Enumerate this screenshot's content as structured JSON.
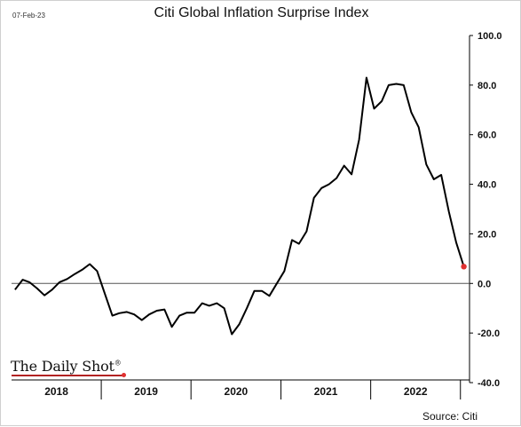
{
  "header": {
    "date": "07-Feb-23",
    "title": "Citi Global Inflation Surprise Index"
  },
  "footer": {
    "source": "Source: Citi",
    "logo_text": "The Daily Shot",
    "logo_mark": "®"
  },
  "colors": {
    "line": "#000000",
    "last_point": "#e03030",
    "zero_line": "#555555",
    "axis": "#000000"
  },
  "chart_data": {
    "type": "line",
    "title": "Citi Global Inflation Surprise Index",
    "xlabel": "",
    "ylabel": "",
    "ylim": [
      -40,
      100
    ],
    "y_ticks": [
      -40,
      -20,
      0,
      20,
      40,
      60,
      80,
      100
    ],
    "y_tick_labels": [
      "-40.0",
      "-20.0",
      "0.0",
      "20.0",
      "40.0",
      "60.0",
      "80.0",
      "100.0"
    ],
    "x_range": [
      "2018-01-01",
      "2023-02-07"
    ],
    "year_labels": [
      "2018",
      "2019",
      "2020",
      "2021",
      "2022"
    ],
    "grid": false,
    "legend": "none",
    "series": [
      {
        "x": [
          "2018-01-15",
          "2018-02-15",
          "2018-03-15",
          "2018-04-15",
          "2018-05-15",
          "2018-06-15",
          "2018-07-15",
          "2018-08-15",
          "2018-09-15",
          "2018-10-15",
          "2018-11-15",
          "2018-12-15",
          "2019-01-15",
          "2019-02-15",
          "2019-03-15",
          "2019-04-15",
          "2019-05-15",
          "2019-06-15",
          "2019-07-15",
          "2019-08-15",
          "2019-09-15",
          "2019-10-15",
          "2019-11-15",
          "2019-12-15",
          "2020-01-15",
          "2020-02-15",
          "2020-03-15",
          "2020-04-15",
          "2020-05-15",
          "2020-06-15",
          "2020-07-15",
          "2020-08-15",
          "2020-09-15",
          "2020-10-15",
          "2020-11-15",
          "2020-12-15",
          "2021-01-15",
          "2021-02-15",
          "2021-03-15",
          "2021-04-15",
          "2021-05-15",
          "2021-06-15",
          "2021-07-15",
          "2021-08-15",
          "2021-09-15",
          "2021-10-15",
          "2021-11-15",
          "2021-12-15",
          "2022-01-15",
          "2022-02-15",
          "2022-03-15",
          "2022-04-15",
          "2022-05-15",
          "2022-06-15",
          "2022-07-15",
          "2022-08-15",
          "2022-09-15",
          "2022-10-15",
          "2022-11-15",
          "2022-12-15",
          "2023-01-15"
        ],
        "values": [
          -2.5,
          1.5,
          0.5,
          -2.0,
          -4.8,
          -2.5,
          0.5,
          1.8,
          3.8,
          5.5,
          7.8,
          5.0,
          -4.0,
          -13.0,
          -12.0,
          -11.5,
          -12.5,
          -14.8,
          -12.5,
          -11.0,
          -10.5,
          -17.5,
          -13.0,
          -11.8,
          -11.8,
          -8.0,
          -9.0,
          -8.0,
          -10.0,
          -20.5,
          -16.5,
          -10.0,
          -3.0,
          -3.0,
          -5.0,
          0.0,
          5.0,
          17.5,
          16.0,
          21.0,
          34.5,
          38.5,
          40.0,
          42.5,
          47.5,
          44.0,
          58.0,
          83.0,
          70.5,
          73.5,
          80.0,
          80.5,
          80.0,
          69.0,
          63.0,
          48.0,
          42.0,
          43.8,
          29.0,
          16.5,
          6.8
        ]
      }
    ]
  }
}
